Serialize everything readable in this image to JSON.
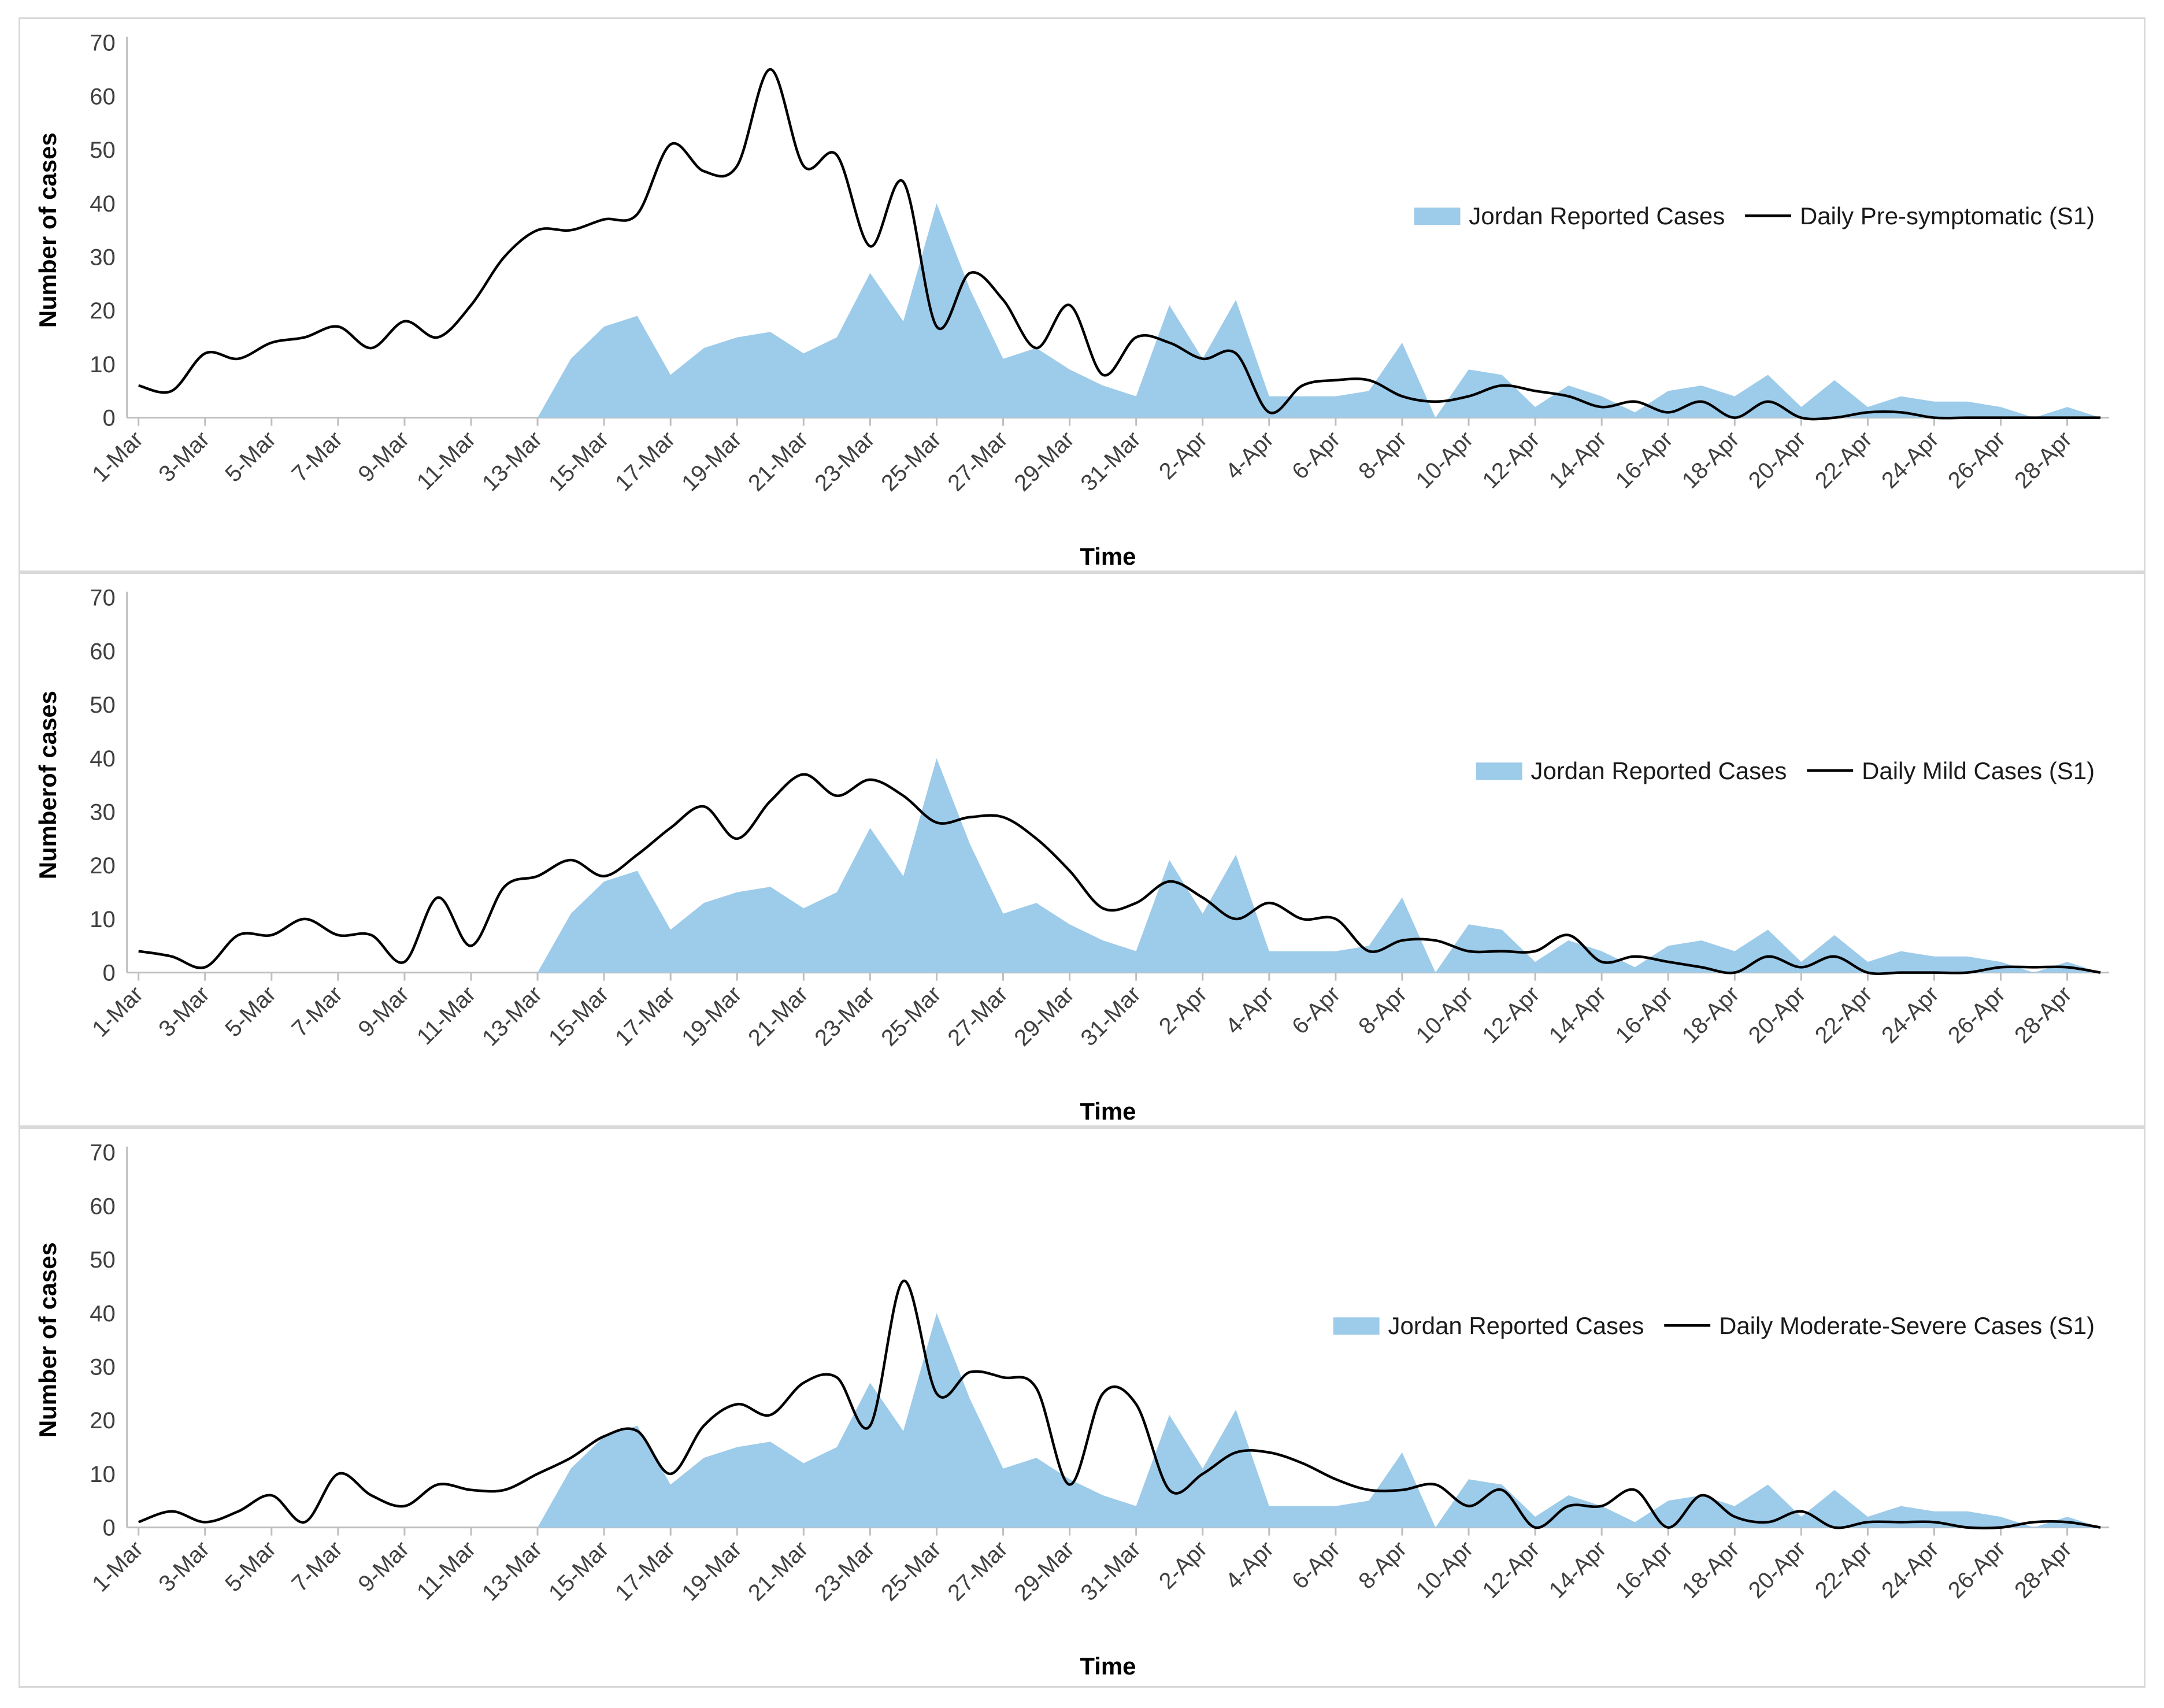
{
  "colors": {
    "area": "#9dcbea",
    "line": "#000000",
    "axis": "#bfbfbf",
    "frame": "#d9d9d9"
  },
  "chart_data": [
    {
      "type": "area+line",
      "xlabel": "Time",
      "ylabel": "Number of cases",
      "ylim": [
        0,
        70
      ],
      "yticks": [
        "0",
        "10",
        "20",
        "30",
        "40",
        "50",
        "60",
        "70"
      ],
      "xticks": [
        "1-Mar",
        "3-Mar",
        "5-Mar",
        "7-Mar",
        "9-Mar",
        "11-Mar",
        "13-Mar",
        "15-Mar",
        "17-Mar",
        "19-Mar",
        "21-Mar",
        "23-Mar",
        "25-Mar",
        "27-Mar",
        "29-Mar",
        "31-Mar",
        "2-Apr",
        "4-Apr",
        "6-Apr",
        "8-Apr",
        "10-Apr",
        "12-Apr",
        "14-Apr",
        "16-Apr",
        "18-Apr",
        "20-Apr",
        "22-Apr",
        "24-Apr",
        "26-Apr",
        "28-Apr"
      ],
      "legend": {
        "area_label": "Jordan Reported Cases",
        "line_label": "Daily Pre-symptomatic  (S1)"
      },
      "series": [
        {
          "name": "Jordan Reported Cases",
          "kind": "area",
          "values": [
            0,
            0,
            0,
            0,
            0,
            0,
            0,
            0,
            0,
            0,
            0,
            0,
            0,
            11,
            17,
            19,
            8,
            13,
            15,
            16,
            12,
            15,
            27,
            18,
            40,
            24,
            11,
            13,
            9,
            6,
            4,
            21,
            11,
            22,
            4,
            4,
            4,
            5,
            14,
            0,
            9,
            8,
            2,
            6,
            4,
            1,
            5,
            6,
            4,
            8,
            2,
            7,
            2,
            4,
            3,
            3,
            2,
            0,
            2,
            0
          ]
        },
        {
          "name": "Daily Pre-symptomatic  (S1)",
          "kind": "line",
          "values": [
            6,
            5,
            12,
            11,
            14,
            15,
            17,
            13,
            18,
            15,
            21,
            30,
            35,
            35,
            37,
            38,
            51,
            46,
            47,
            65,
            47,
            49,
            32,
            44,
            17,
            27,
            22,
            13,
            21,
            8,
            15,
            14,
            11,
            12,
            1,
            6,
            7,
            7,
            4,
            3,
            4,
            6,
            5,
            4,
            2,
            3,
            1,
            3,
            0,
            3,
            0,
            0,
            1,
            1,
            0,
            0,
            0,
            0,
            0,
            0
          ]
        }
      ]
    },
    {
      "type": "area+line",
      "xlabel": "Time",
      "ylabel": "Numberof cases",
      "ylim": [
        0,
        70
      ],
      "yticks": [
        "0",
        "10",
        "20",
        "30",
        "40",
        "50",
        "60",
        "70"
      ],
      "xticks": [
        "1-Mar",
        "3-Mar",
        "5-Mar",
        "7-Mar",
        "9-Mar",
        "11-Mar",
        "13-Mar",
        "15-Mar",
        "17-Mar",
        "19-Mar",
        "21-Mar",
        "23-Mar",
        "25-Mar",
        "27-Mar",
        "29-Mar",
        "31-Mar",
        "2-Apr",
        "4-Apr",
        "6-Apr",
        "8-Apr",
        "10-Apr",
        "12-Apr",
        "14-Apr",
        "16-Apr",
        "18-Apr",
        "20-Apr",
        "22-Apr",
        "24-Apr",
        "26-Apr",
        "28-Apr"
      ],
      "legend": {
        "area_label": "Jordan Reported Cases",
        "line_label": "Daily Mild Cases (S1)"
      },
      "series": [
        {
          "name": "Jordan Reported Cases",
          "kind": "area",
          "values": [
            0,
            0,
            0,
            0,
            0,
            0,
            0,
            0,
            0,
            0,
            0,
            0,
            0,
            11,
            17,
            19,
            8,
            13,
            15,
            16,
            12,
            15,
            27,
            18,
            40,
            24,
            11,
            13,
            9,
            6,
            4,
            21,
            11,
            22,
            4,
            4,
            4,
            5,
            14,
            0,
            9,
            8,
            2,
            6,
            4,
            1,
            5,
            6,
            4,
            8,
            2,
            7,
            2,
            4,
            3,
            3,
            2,
            0,
            2,
            0
          ]
        },
        {
          "name": "Daily Mild Cases (S1)",
          "kind": "line",
          "values": [
            4,
            3,
            1,
            7,
            7,
            10,
            7,
            7,
            2,
            14,
            5,
            16,
            18,
            21,
            18,
            22,
            27,
            31,
            25,
            32,
            37,
            33,
            36,
            33,
            28,
            29,
            29,
            25,
            19,
            12,
            13,
            17,
            14,
            10,
            13,
            10,
            10,
            4,
            6,
            6,
            4,
            4,
            4,
            7,
            2,
            3,
            2,
            1,
            0,
            3,
            1,
            3,
            0,
            0,
            0,
            0,
            1,
            1,
            1,
            0
          ]
        }
      ]
    },
    {
      "type": "area+line",
      "xlabel": "Time",
      "ylabel": "Number of cases",
      "ylim": [
        0,
        70
      ],
      "yticks": [
        "0",
        "10",
        "20",
        "30",
        "40",
        "50",
        "60",
        "70"
      ],
      "xticks": [
        "1-Mar",
        "3-Mar",
        "5-Mar",
        "7-Mar",
        "9-Mar",
        "11-Mar",
        "13-Mar",
        "15-Mar",
        "17-Mar",
        "19-Mar",
        "21-Mar",
        "23-Mar",
        "25-Mar",
        "27-Mar",
        "29-Mar",
        "31-Mar",
        "2-Apr",
        "4-Apr",
        "6-Apr",
        "8-Apr",
        "10-Apr",
        "12-Apr",
        "14-Apr",
        "16-Apr",
        "18-Apr",
        "20-Apr",
        "22-Apr",
        "24-Apr",
        "26-Apr",
        "28-Apr"
      ],
      "legend": {
        "area_label": "Jordan Reported Cases",
        "line_label": "Daily Moderate-Severe Cases (S1)"
      },
      "series": [
        {
          "name": "Jordan Reported Cases",
          "kind": "area",
          "values": [
            0,
            0,
            0,
            0,
            0,
            0,
            0,
            0,
            0,
            0,
            0,
            0,
            0,
            11,
            17,
            19,
            8,
            13,
            15,
            16,
            12,
            15,
            27,
            18,
            40,
            24,
            11,
            13,
            9,
            6,
            4,
            21,
            11,
            22,
            4,
            4,
            4,
            5,
            14,
            0,
            9,
            8,
            2,
            6,
            4,
            1,
            5,
            6,
            4,
            8,
            2,
            7,
            2,
            4,
            3,
            3,
            2,
            0,
            2,
            0
          ]
        },
        {
          "name": "Daily Moderate-Severe Cases (S1)",
          "kind": "line",
          "values": [
            1,
            3,
            1,
            3,
            6,
            1,
            10,
            6,
            4,
            8,
            7,
            7,
            10,
            13,
            17,
            18,
            10,
            19,
            23,
            21,
            27,
            28,
            19,
            46,
            25,
            29,
            28,
            26,
            8,
            25,
            23,
            7,
            10,
            14,
            14,
            12,
            9,
            7,
            7,
            8,
            4,
            7,
            0,
            4,
            4,
            7,
            0,
            6,
            2,
            1,
            3,
            0,
            1,
            1,
            1,
            0,
            0,
            1,
            1,
            0
          ]
        }
      ]
    }
  ]
}
